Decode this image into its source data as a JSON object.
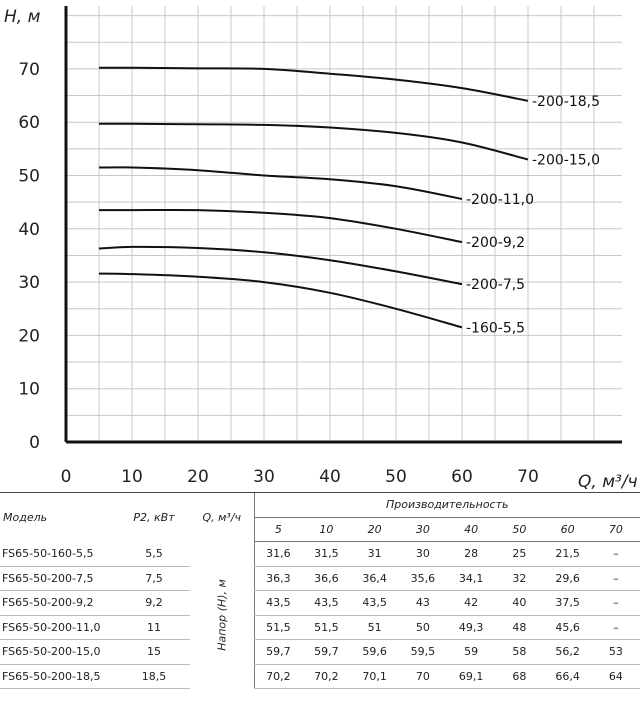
{
  "chart_data": {
    "type": "line",
    "xlabel": "Q, м³/ч",
    "ylabel": "H, м",
    "xlim": [
      0,
      80
    ],
    "ylim": [
      0,
      75
    ],
    "x_ticks": [
      "0",
      "10",
      "20",
      "30",
      "40",
      "50",
      "60",
      "70"
    ],
    "y_ticks": [
      "0",
      "10",
      "20",
      "30",
      "40",
      "50",
      "60",
      "70"
    ],
    "grid": true,
    "x": [
      5,
      10,
      20,
      30,
      40,
      50,
      60,
      70
    ],
    "series": [
      {
        "name": "-200-18,5",
        "values": [
          70.2,
          70.2,
          70.1,
          70,
          69.1,
          68,
          66.4,
          64
        ]
      },
      {
        "name": "-200-15,0",
        "values": [
          59.7,
          59.7,
          59.6,
          59.5,
          59,
          58,
          56.2,
          53
        ]
      },
      {
        "name": "-200-11,0",
        "values": [
          51.5,
          51.5,
          51,
          50,
          49.3,
          48,
          45.6,
          null
        ]
      },
      {
        "name": "-200-9,2",
        "values": [
          43.5,
          43.5,
          43.5,
          43,
          42,
          40,
          37.5,
          null
        ]
      },
      {
        "name": "-200-7,5",
        "values": [
          36.3,
          36.6,
          36.4,
          35.6,
          34.1,
          32,
          29.6,
          null
        ]
      },
      {
        "name": "-160-5,5",
        "values": [
          31.6,
          31.5,
          31,
          30,
          28,
          25,
          21.5,
          null
        ]
      }
    ]
  },
  "table": {
    "headers": {
      "model": "Модель",
      "power": "P2, кВт",
      "flow_unit": "Q, м³/ч",
      "productivity": "Производительность",
      "napor": "Напор (Н), м"
    },
    "flows": [
      "5",
      "10",
      "20",
      "30",
      "40",
      "50",
      "60",
      "70"
    ],
    "rows": [
      {
        "model": "FS65-50-160-5,5",
        "power": "5,5",
        "values": [
          "31,6",
          "31,5",
          "31",
          "30",
          "28",
          "25",
          "21,5",
          "–"
        ]
      },
      {
        "model": "FS65-50-200-7,5",
        "power": "7,5",
        "values": [
          "36,3",
          "36,6",
          "36,4",
          "35,6",
          "34,1",
          "32",
          "29,6",
          "–"
        ]
      },
      {
        "model": "FS65-50-200-9,2",
        "power": "9,2",
        "values": [
          "43,5",
          "43,5",
          "43,5",
          "43",
          "42",
          "40",
          "37,5",
          "–"
        ]
      },
      {
        "model": "FS65-50-200-11,0",
        "power": "11",
        "values": [
          "51,5",
          "51,5",
          "51",
          "50",
          "49,3",
          "48",
          "45,6",
          "–"
        ]
      },
      {
        "model": "FS65-50-200-15,0",
        "power": "15",
        "values": [
          "59,7",
          "59,7",
          "59,6",
          "59,5",
          "59",
          "58",
          "56,2",
          "53"
        ]
      },
      {
        "model": "FS65-50-200-18,5",
        "power": "18,5",
        "values": [
          "70,2",
          "70,2",
          "70,1",
          "70",
          "69,1",
          "68",
          "66,4",
          "64"
        ]
      }
    ]
  },
  "colors": {
    "curve": "#111111",
    "grid": "#c8c8c8",
    "axis": "#111111"
  }
}
